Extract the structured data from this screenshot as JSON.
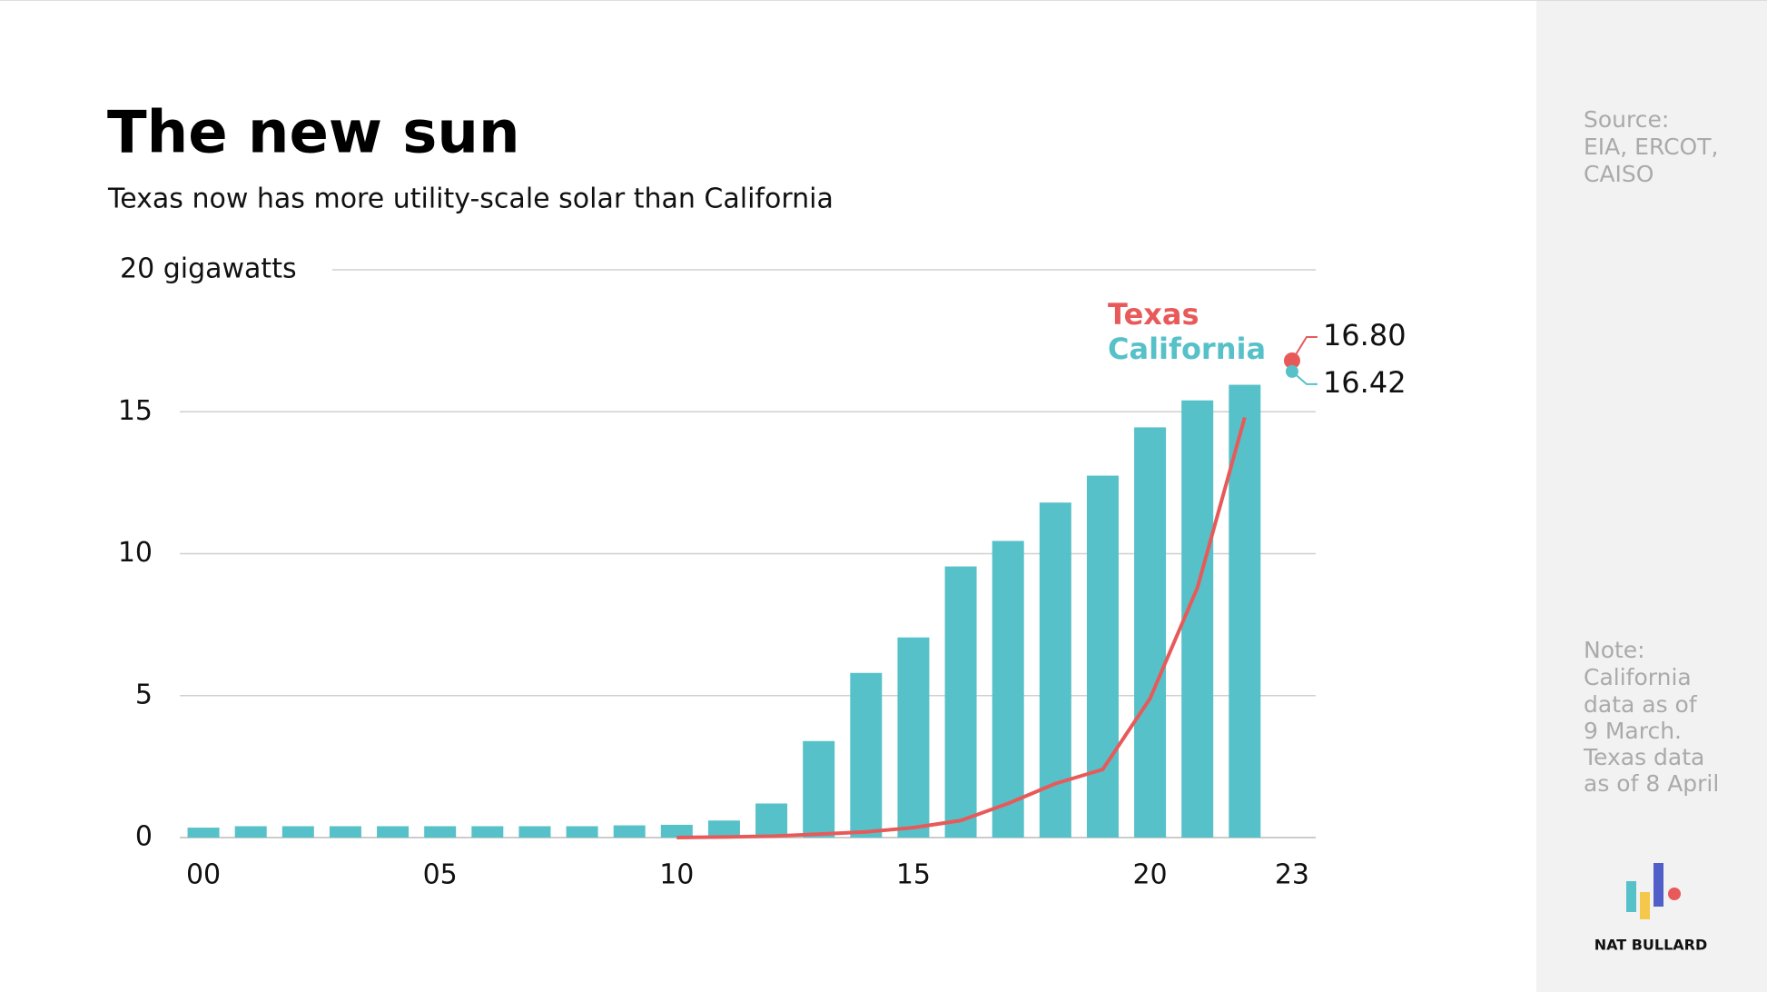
{
  "chart_data": {
    "type": "bar",
    "title": "The new sun",
    "subtitle": "Texas now has more utility-scale solar than California",
    "x": [
      0,
      1,
      2,
      3,
      4,
      5,
      6,
      7,
      8,
      9,
      10,
      11,
      12,
      13,
      14,
      15,
      16,
      17,
      18,
      19,
      20,
      21,
      22
    ],
    "series": [
      {
        "name": "California",
        "type": "bar",
        "color": "#56c1c8",
        "values": [
          0.35,
          0.4,
          0.4,
          0.4,
          0.4,
          0.4,
          0.4,
          0.4,
          0.4,
          0.43,
          0.45,
          0.6,
          1.2,
          3.4,
          5.8,
          7.05,
          9.55,
          10.45,
          11.8,
          12.75,
          14.45,
          15.4,
          15.95
        ],
        "latest_x": 23,
        "latest_value": 16.42,
        "latest_label": "16.42"
      },
      {
        "name": "Texas",
        "type": "line",
        "color": "#e85a5a",
        "values": [
          null,
          null,
          null,
          null,
          null,
          null,
          null,
          null,
          null,
          null,
          0.0,
          0.02,
          0.05,
          0.12,
          0.2,
          0.35,
          0.6,
          1.2,
          1.9,
          2.4,
          4.9,
          8.8,
          14.8
        ],
        "latest_x": 23,
        "latest_value": 16.8,
        "latest_label": "16.80"
      }
    ],
    "xlim": [
      -0.5,
      23.5
    ],
    "xticks": [
      {
        "value": 0,
        "label": "00"
      },
      {
        "value": 5,
        "label": "05"
      },
      10,
      15,
      20,
      23
    ],
    "ylim": [
      0,
      20
    ],
    "yticks": [
      0,
      5,
      10,
      15,
      {
        "value": 20,
        "label": "20 gigawatts"
      }
    ],
    "grid": true
  },
  "sidebar": {
    "source": [
      "Source:",
      "EIA, ERCOT,",
      "CAISO"
    ],
    "note": [
      "Note:",
      "California",
      "data as of",
      "9 March.",
      "Texas data",
      "as of 8 April"
    ],
    "brand": "NAT BULLARD"
  }
}
